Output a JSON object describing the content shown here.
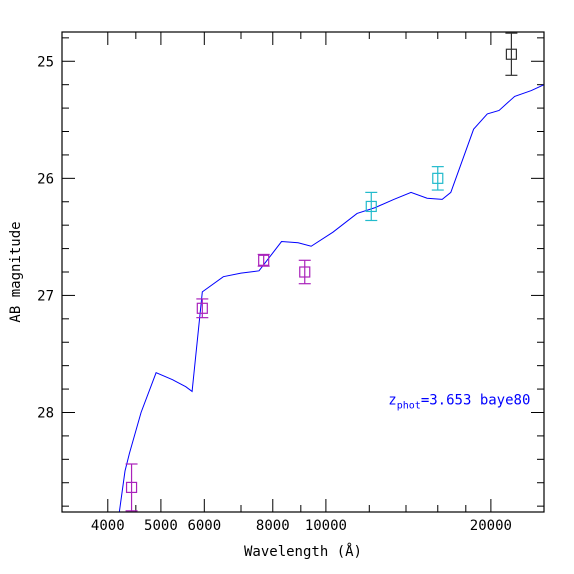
{
  "chart_data": {
    "type": "scatter",
    "xlabel": "Wavelength (Å)",
    "ylabel": "AB magnitude",
    "x_scale": "log",
    "xlim": [
      3300,
      25000
    ],
    "ylim": [
      28.85,
      24.75
    ],
    "x_ticks": [
      {
        "value": 4000,
        "label": "4000"
      },
      {
        "value": 5000,
        "label": "5000"
      },
      {
        "value": 6000,
        "label": "6000"
      },
      {
        "value": 8000,
        "label": "8000"
      },
      {
        "value": 10000,
        "label": "10000"
      },
      {
        "value": 20000,
        "label": "20000"
      }
    ],
    "x_minor_ticks": [
      4500,
      7000,
      9000,
      12000,
      14000,
      16000,
      18000
    ],
    "y_ticks": [
      {
        "value": 25,
        "label": "25"
      },
      {
        "value": 26,
        "label": "26"
      },
      {
        "value": 27,
        "label": "27"
      },
      {
        "value": 28,
        "label": "28"
      }
    ],
    "y_minor_step": 0.2,
    "series": [
      {
        "kind": "line",
        "color": "#0000ff",
        "points": [
          [
            4100,
            29.2
          ],
          [
            4300,
            28.5
          ],
          [
            4380,
            28.35
          ],
          [
            4600,
            28.0
          ],
          [
            4900,
            27.66
          ],
          [
            5250,
            27.72
          ],
          [
            5550,
            27.78
          ],
          [
            5700,
            27.82
          ],
          [
            5950,
            26.97
          ],
          [
            6500,
            26.84
          ],
          [
            7000,
            26.81
          ],
          [
            7550,
            26.79
          ],
          [
            8300,
            26.54
          ],
          [
            8900,
            26.55
          ],
          [
            9400,
            26.58
          ],
          [
            10300,
            26.46
          ],
          [
            11400,
            26.3
          ],
          [
            12300,
            26.25
          ],
          [
            13300,
            26.18
          ],
          [
            14300,
            26.12
          ],
          [
            15300,
            26.17
          ],
          [
            16300,
            26.18
          ],
          [
            16900,
            26.12
          ],
          [
            18600,
            25.58
          ],
          [
            19700,
            25.45
          ],
          [
            20700,
            25.42
          ],
          [
            22100,
            25.3
          ],
          [
            23700,
            25.25
          ],
          [
            25000,
            25.2
          ]
        ]
      },
      {
        "kind": "points",
        "color": "#aa22bb",
        "points": [
          {
            "x": 4420,
            "y": 28.64,
            "err": 0.2
          },
          {
            "x": 5950,
            "y": 27.11,
            "err": 0.08
          },
          {
            "x": 7700,
            "y": 26.7,
            "err": 0.05
          },
          {
            "x": 9150,
            "y": 26.8,
            "err": 0.1
          }
        ]
      },
      {
        "kind": "points",
        "color": "#22bbcc",
        "points": [
          {
            "x": 12100,
            "y": 26.24,
            "err": 0.12
          },
          {
            "x": 16000,
            "y": 26.0,
            "err": 0.1
          }
        ]
      },
      {
        "kind": "points",
        "color": "#333333",
        "points": [
          {
            "x": 21800,
            "y": 24.94,
            "err": 0.18
          }
        ]
      }
    ],
    "annotation": {
      "prefix": "z",
      "subscript": "phot",
      "text": "=3.653 baye80",
      "color": "#0000ff",
      "x": 13000,
      "y": 27.93
    }
  }
}
